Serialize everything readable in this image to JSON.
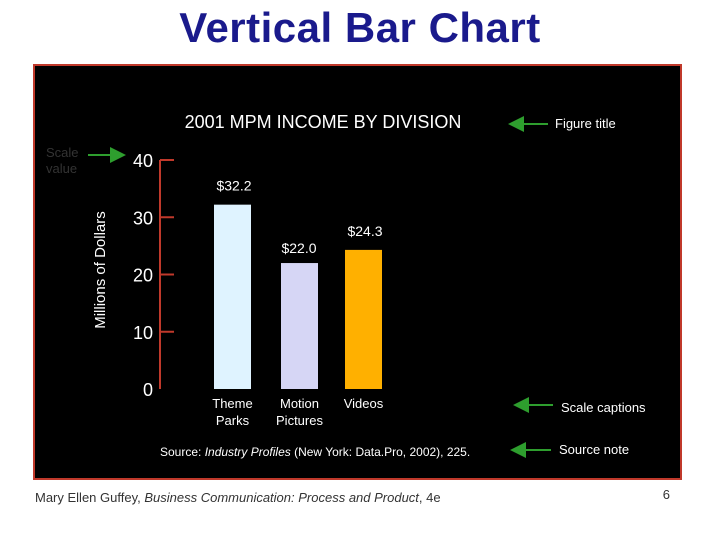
{
  "slide": {
    "title": "Vertical Bar Chart",
    "footer_prefix": "Mary Ellen Guffey, ",
    "footer_book": "Business Communication: Process and Product",
    "footer_suffix": ", 4e",
    "page_number": "6"
  },
  "colors": {
    "title": "#1a1a8c",
    "panel_background": "#000000",
    "panel_border": "#c0392b",
    "axis": "#c0392b",
    "text": "#ffffff",
    "arrow": "#2e9e2e"
  },
  "annotations": {
    "scale_value_line1": "Scale",
    "scale_value_line2": "value",
    "figure_title": "Figure title",
    "scale_captions": "Scale captions",
    "source_note": "Source note"
  },
  "source": {
    "prefix": "Source: ",
    "italic": "Industry Profiles",
    "suffix": " (New York: Data.Pro, 2002), 225."
  },
  "chart_data": {
    "type": "bar",
    "title": "2001 MPM INCOME BY DIVISION",
    "ylabel": "Millions of Dollars",
    "xlabel": "",
    "ylim": [
      0,
      40
    ],
    "yticks": [
      0,
      10,
      20,
      30,
      40
    ],
    "categories": [
      {
        "line1": "Theme",
        "line2": "Parks"
      },
      {
        "line1": "Motion",
        "line2": "Pictures"
      },
      {
        "line1": "Videos",
        "line2": ""
      }
    ],
    "values": [
      32.2,
      22.0,
      24.3
    ],
    "value_labels": [
      "$32.2",
      "$22.0",
      "$24.3"
    ],
    "bar_colors": [
      "#dff3ff",
      "#d6d6f5",
      "#ffb000"
    ],
    "grid": false
  }
}
